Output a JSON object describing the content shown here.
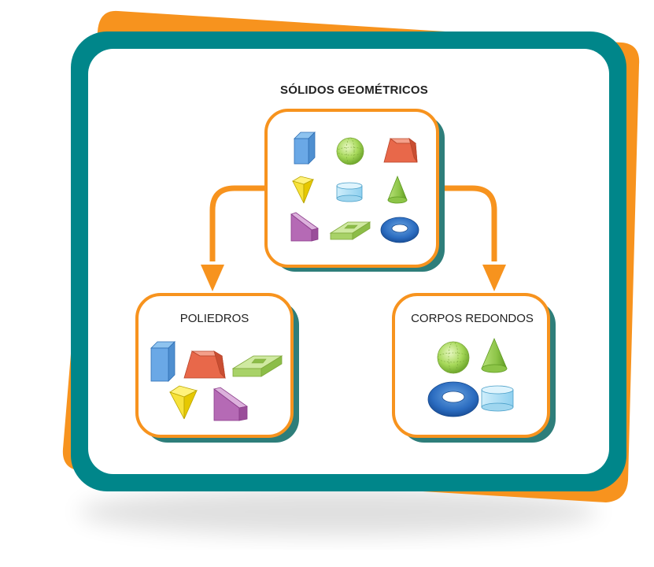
{
  "diagram": {
    "title": "SÓLIDOS GEOMÉTRICOS",
    "left_box": {
      "label": "POLIEDROS"
    },
    "right_box": {
      "label": "CORPOS REDONDOS"
    }
  },
  "colors": {
    "orange": "#F7931E",
    "teal": "#00868A",
    "box_shadow": "#2E7E7A",
    "background": "#FFFFFF"
  }
}
